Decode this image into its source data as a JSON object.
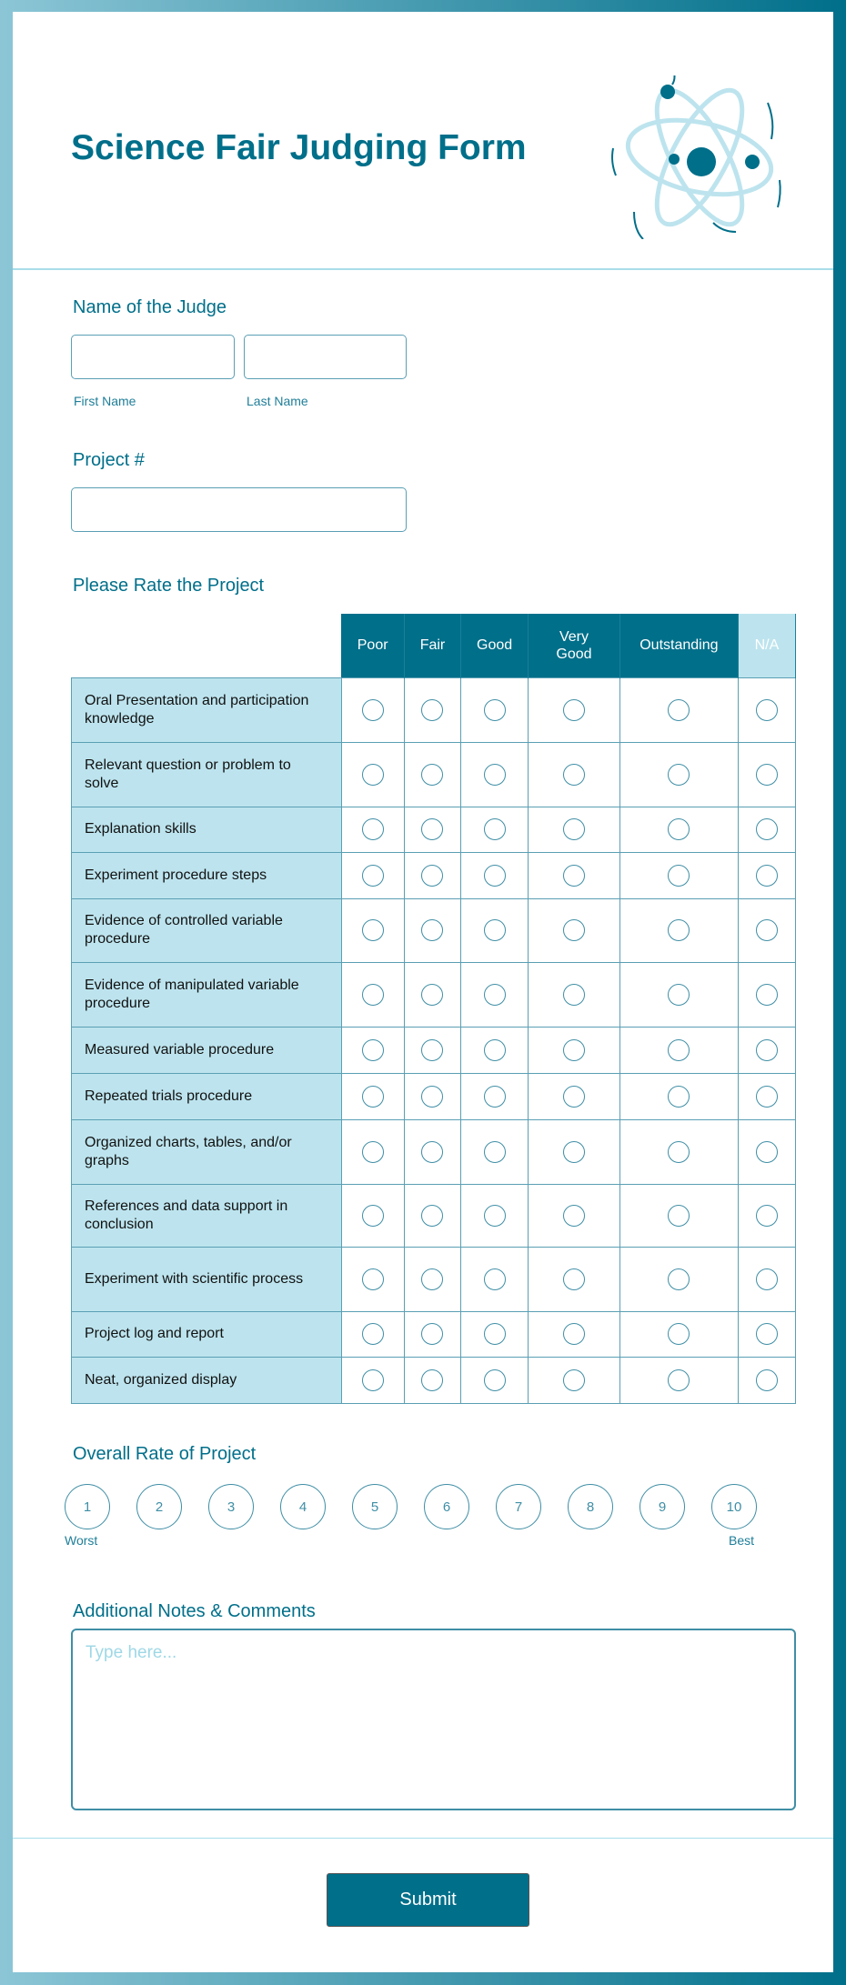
{
  "header": {
    "title": "Science Fair Judging Form"
  },
  "judge": {
    "label": "Name of the Judge",
    "first_label": "First Name",
    "last_label": "Last Name",
    "first_value": "",
    "last_value": ""
  },
  "project": {
    "label": "Project #",
    "value": ""
  },
  "rating": {
    "label": "Please Rate the Project",
    "columns": [
      "Poor",
      "Fair",
      "Good",
      "Very Good",
      "Outstanding",
      "N/A"
    ],
    "rows": [
      "Oral Presentation and participation knowledge",
      "Relevant question or problem to solve",
      "Explanation skills",
      "Experiment procedure steps",
      "Evidence of controlled variable procedure",
      "Evidence of manipulated variable procedure",
      "Measured variable procedure",
      "Repeated trials procedure",
      "Organized charts, tables, and/or graphs",
      "References and data support in conclusion",
      "Experiment with scientific process",
      "Project log and report",
      "Neat, organized display"
    ]
  },
  "overall": {
    "label": "Overall Rate of Project",
    "options": [
      "1",
      "2",
      "3",
      "4",
      "5",
      "6",
      "7",
      "8",
      "9",
      "10"
    ],
    "min_label": "Worst",
    "max_label": "Best"
  },
  "notes": {
    "label": "Additional Notes & Comments",
    "placeholder": "Type here..."
  },
  "submit_label": "Submit",
  "colors": {
    "primary": "#006f8a",
    "light": "#bde4ee"
  }
}
